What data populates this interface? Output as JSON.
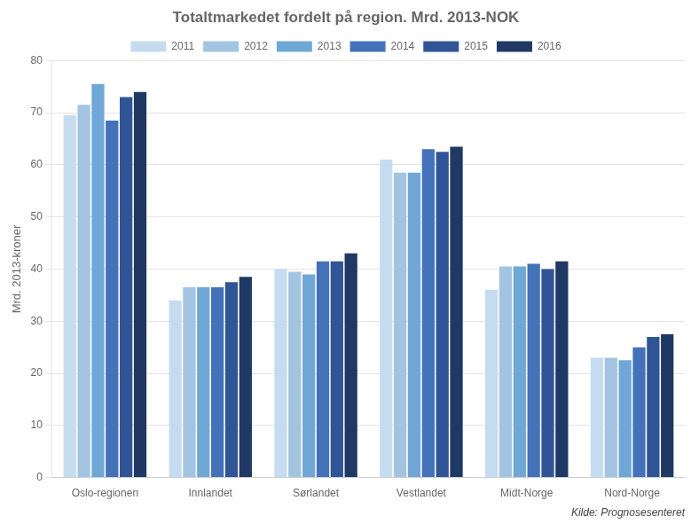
{
  "chart_data": {
    "type": "bar",
    "title": "Totaltmarkedet fordelt på region. Mrd. 2013-NOK",
    "ylabel": "Mrd. 2013-kroner",
    "annotations": [
      "Kilde: Prognosesenteret"
    ],
    "categories": [
      "Oslo-regionen",
      "Innlandet",
      "Sørlandet",
      "Vestlandet",
      "Midt-Norge",
      "Nord-Norge"
    ],
    "series": [
      {
        "name": "2011",
        "color": "#C5DCF0",
        "values": [
          69.5,
          34.0,
          40.0,
          61.0,
          36.0,
          23.0
        ]
      },
      {
        "name": "2012",
        "color": "#A2C4E0",
        "values": [
          71.5,
          36.5,
          39.5,
          58.5,
          40.5,
          23.0
        ]
      },
      {
        "name": "2013",
        "color": "#6FA8D6",
        "values": [
          75.5,
          36.5,
          39.0,
          58.5,
          40.5,
          22.5
        ]
      },
      {
        "name": "2014",
        "color": "#4472B8",
        "values": [
          68.5,
          36.5,
          41.5,
          63.0,
          41.0,
          25.0
        ]
      },
      {
        "name": "2015",
        "color": "#2F5597",
        "values": [
          73.0,
          37.5,
          41.5,
          62.5,
          40.0,
          27.0
        ]
      },
      {
        "name": "2016",
        "color": "#1F3864",
        "values": [
          74.0,
          38.5,
          43.0,
          63.5,
          41.5,
          27.5
        ]
      }
    ],
    "ylim": [
      0,
      80
    ],
    "yticks": [
      0,
      10,
      20,
      30,
      40,
      50,
      60,
      70,
      80
    ],
    "grid": true,
    "legend": "top"
  }
}
